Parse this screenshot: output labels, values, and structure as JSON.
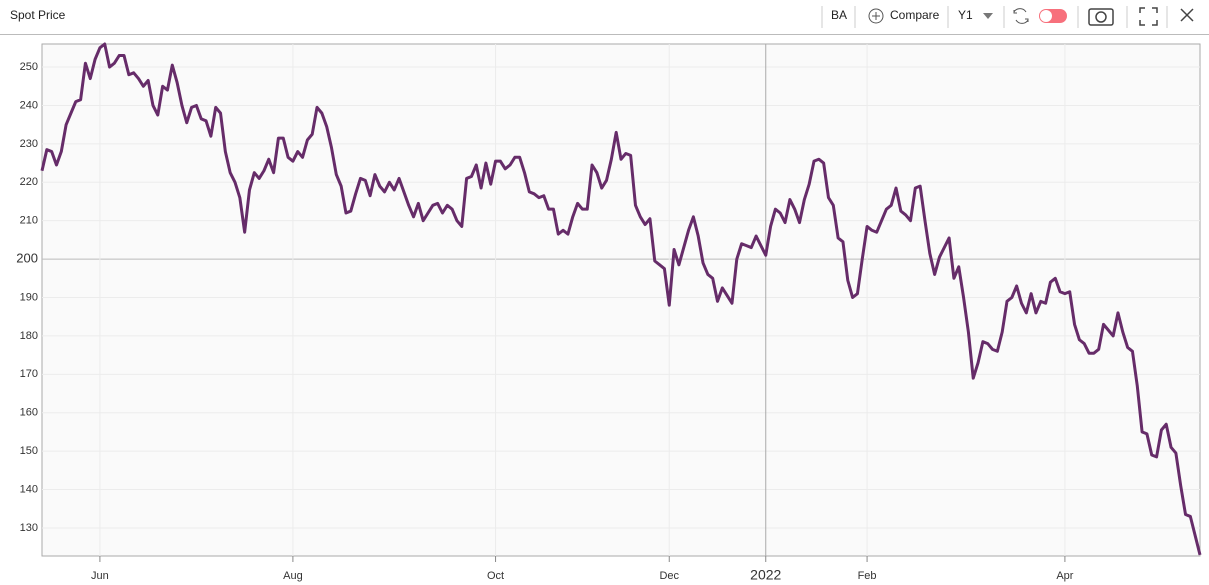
{
  "toolbar": {
    "symbol": "BA",
    "compare": "Compare",
    "range": "Y1"
  },
  "chart_data": {
    "type": "line",
    "title": "Spot Price",
    "color": "#662c69",
    "grid": true,
    "ylim": [
      122.7,
      256
    ],
    "yticks": [
      130,
      140,
      150,
      160,
      170,
      180,
      190,
      200,
      210,
      220,
      230,
      240,
      250
    ],
    "categories": [
      null,
      null,
      null,
      null,
      null,
      null,
      null,
      null,
      null,
      null,
      null,
      null,
      "Jun",
      null,
      null,
      null,
      null,
      null,
      null,
      null,
      null,
      null,
      null,
      null,
      null,
      null,
      null,
      null,
      null,
      null,
      null,
      null,
      null,
      null,
      null,
      null,
      null,
      null,
      null,
      null,
      null,
      null,
      null,
      null,
      null,
      null,
      null,
      null,
      null,
      null,
      null,
      null,
      "Aug",
      null,
      null,
      null,
      null,
      null,
      null,
      null,
      null,
      null,
      null,
      null,
      null,
      null,
      null,
      null,
      null,
      null,
      null,
      null,
      null,
      null,
      null,
      null,
      null,
      null,
      null,
      null,
      null,
      null,
      null,
      null,
      null,
      null,
      null,
      null,
      null,
      null,
      null,
      null,
      null,
      null,
      "Oct",
      null,
      null,
      null,
      null,
      null,
      null,
      null,
      null,
      null,
      null,
      null,
      null,
      null,
      null,
      null,
      null,
      null,
      null,
      null,
      null,
      null,
      null,
      null,
      null,
      null,
      null,
      null,
      null,
      null,
      null,
      null,
      null,
      null,
      null,
      null,
      "Dec",
      null,
      null,
      null,
      null,
      null,
      null,
      null,
      null,
      null,
      null,
      null,
      null,
      null,
      null,
      null,
      null,
      null,
      null,
      null,
      "2022",
      null,
      null,
      null,
      null,
      null,
      null,
      null,
      null,
      null,
      null,
      null,
      null,
      null,
      null,
      null,
      null,
      null,
      null,
      null,
      null,
      "Feb",
      null,
      null,
      null,
      null,
      null,
      null,
      null,
      null,
      null,
      null,
      null,
      null,
      null,
      null,
      null,
      null,
      null,
      null,
      null,
      null,
      null,
      null,
      null,
      null,
      null,
      null,
      null,
      null,
      null,
      null,
      null,
      null,
      null,
      null,
      null,
      null,
      null,
      null,
      null,
      null,
      "Apr",
      null,
      null,
      null,
      null,
      null,
      null,
      null,
      null,
      null,
      null,
      null,
      null,
      null,
      null,
      null,
      null,
      null,
      null,
      null,
      null,
      null,
      null,
      null,
      null,
      null,
      null,
      null,
      null
    ],
    "values": [
      223,
      228.5,
      228,
      224.5,
      228,
      235,
      238,
      241,
      241.5,
      251,
      247,
      252,
      255,
      256,
      250,
      251,
      253,
      253,
      248,
      248.5,
      247,
      245,
      246.5,
      240,
      237.5,
      245,
      244,
      250.5,
      246,
      240,
      235.5,
      239.5,
      240,
      236.5,
      236,
      232,
      239.5,
      238,
      228,
      222.5,
      220,
      216,
      207,
      218,
      222.5,
      221,
      223,
      226,
      222.5,
      231.5,
      231.5,
      226.5,
      225.5,
      228,
      226.5,
      231,
      232.5,
      239.5,
      238,
      234.5,
      229,
      222,
      219,
      212,
      212.5,
      217,
      221,
      220.5,
      216.5,
      222,
      219,
      217.5,
      220,
      218,
      221,
      217.5,
      214,
      211,
      214.5,
      210,
      212,
      214,
      214.5,
      212,
      214,
      213,
      210,
      208.5,
      221,
      221.5,
      224.5,
      218.5,
      225,
      219.5,
      225.5,
      225.5,
      223.5,
      224.5,
      226.5,
      226.5,
      222.5,
      217.5,
      217,
      216,
      216.5,
      213,
      213,
      206.5,
      207.5,
      206.5,
      211,
      214.5,
      213,
      213,
      224.5,
      222.5,
      218.5,
      220.5,
      226,
      233,
      226,
      227.5,
      227,
      214,
      211,
      209,
      210.5,
      199.5,
      198.5,
      197.5,
      188,
      202.5,
      198.5,
      203,
      207.5,
      211,
      206,
      199,
      196,
      195,
      189,
      192.5,
      190.5,
      188.5,
      200,
      204,
      203.5,
      203,
      206,
      203.5,
      201,
      208.5,
      213,
      212,
      209.5,
      215.5,
      213,
      209.5,
      215.5,
      219.5,
      225.5,
      226,
      225,
      216,
      214,
      205.5,
      204.5,
      194.5,
      190,
      191,
      200,
      208.5,
      207.5,
      207,
      210,
      213,
      214,
      218.5,
      212.5,
      211.5,
      210,
      218.5,
      219,
      210,
      201.5,
      196,
      200.5,
      203,
      205.5,
      195,
      198,
      190,
      181,
      169,
      173,
      178.5,
      178,
      176.5,
      176,
      181,
      189,
      190,
      193,
      188.5,
      186,
      191,
      186,
      189,
      188.5,
      194,
      195,
      191.5,
      191,
      191.5,
      183,
      179,
      178,
      175.5,
      175.5,
      176.5,
      183,
      181.5,
      180,
      186,
      181,
      177,
      176,
      167,
      155,
      154.5,
      149,
      148.5,
      155.5,
      157,
      151,
      149.5,
      141,
      133.5,
      133,
      128,
      123
    ]
  }
}
